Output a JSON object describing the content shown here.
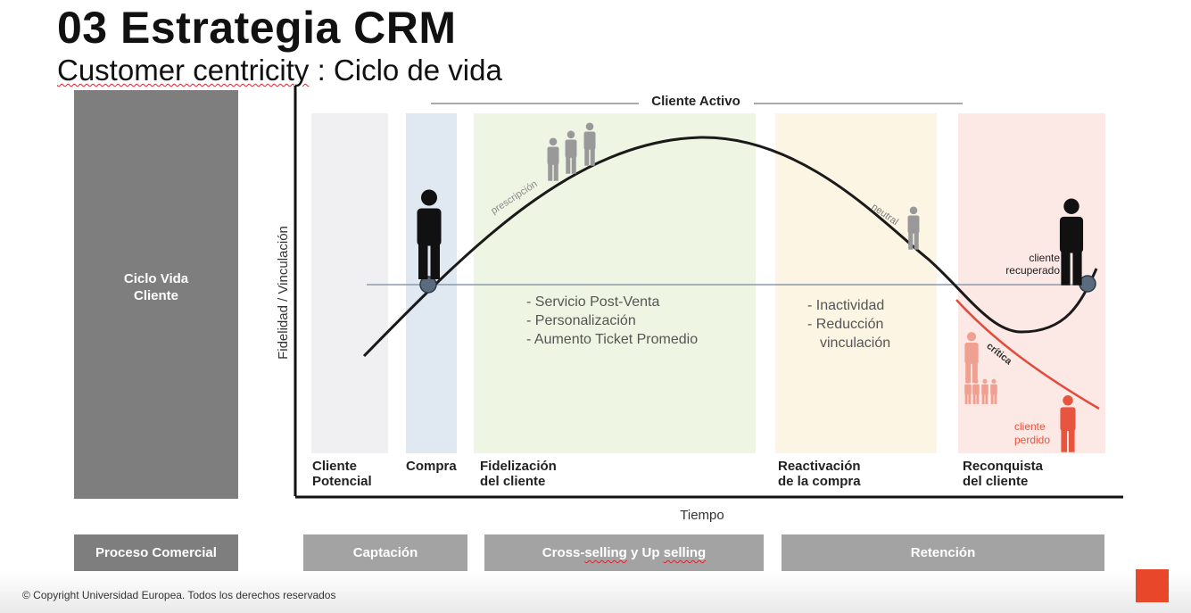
{
  "slide": {
    "title": "03 Estrategia CRM",
    "subtitle_prefix": "Customer centricity",
    "subtitle_suffix": " : Ciclo de vida"
  },
  "left_panel": {
    "label": "Ciclo Vida\nCliente"
  },
  "diagram": {
    "axis_y_label": "Fidelidad / Vinculación",
    "axis_x_label": "Tiempo",
    "active_label": "Cliente Activo",
    "stages": [
      {
        "label_line1": "Cliente",
        "label_line2": "Potencial",
        "color": "#f0f0f2"
      },
      {
        "label_line1": "Compra",
        "label_line2": "",
        "color": "#e0e8f1"
      },
      {
        "label_line1": "Fidelización",
        "label_line2": "del cliente",
        "color": "#eef6e3"
      },
      {
        "label_line1": "Reactivación",
        "label_line2": "de la compra",
        "color": "#fdf5e4"
      },
      {
        "label_line1": "Reconquista",
        "label_line2": "del cliente",
        "color": "#fce8e4"
      }
    ],
    "curve_labels": {
      "prescripcion": "prescripción",
      "neutral": "neutral",
      "critica": "crítica",
      "recuperado_line1": "cliente",
      "recuperado_line2": "recuperado",
      "perdido_line1": "cliente",
      "perdido_line2": "perdido"
    },
    "fidelizacion_items": [
      "- Servicio Post-Venta",
      "- Personalización",
      "- Aumento Ticket Promedio"
    ],
    "reactivacion_items": [
      "- Inactividad",
      "- Reducción",
      "vinculación"
    ],
    "colors": {
      "curve": "#1a1a1a",
      "lost_curve": "#e24b3b",
      "lost_figure": "#e8553f",
      "person": "#111111",
      "gray_person": "#999999",
      "marker": "#5a6b7d"
    }
  },
  "bottom_bar": {
    "proceso": "Proceso Comercial",
    "captacion": "Captación",
    "cross_prefix": "Cross-",
    "cross_w1": "selling",
    "cross_mid": " y ",
    "cross_w2": "Up",
    "cross_space": " ",
    "cross_w3": "selling",
    "retencion": "Retención"
  },
  "footer": {
    "copyright": "© Copyright Universidad Europea. Todos los derechos reservados"
  }
}
